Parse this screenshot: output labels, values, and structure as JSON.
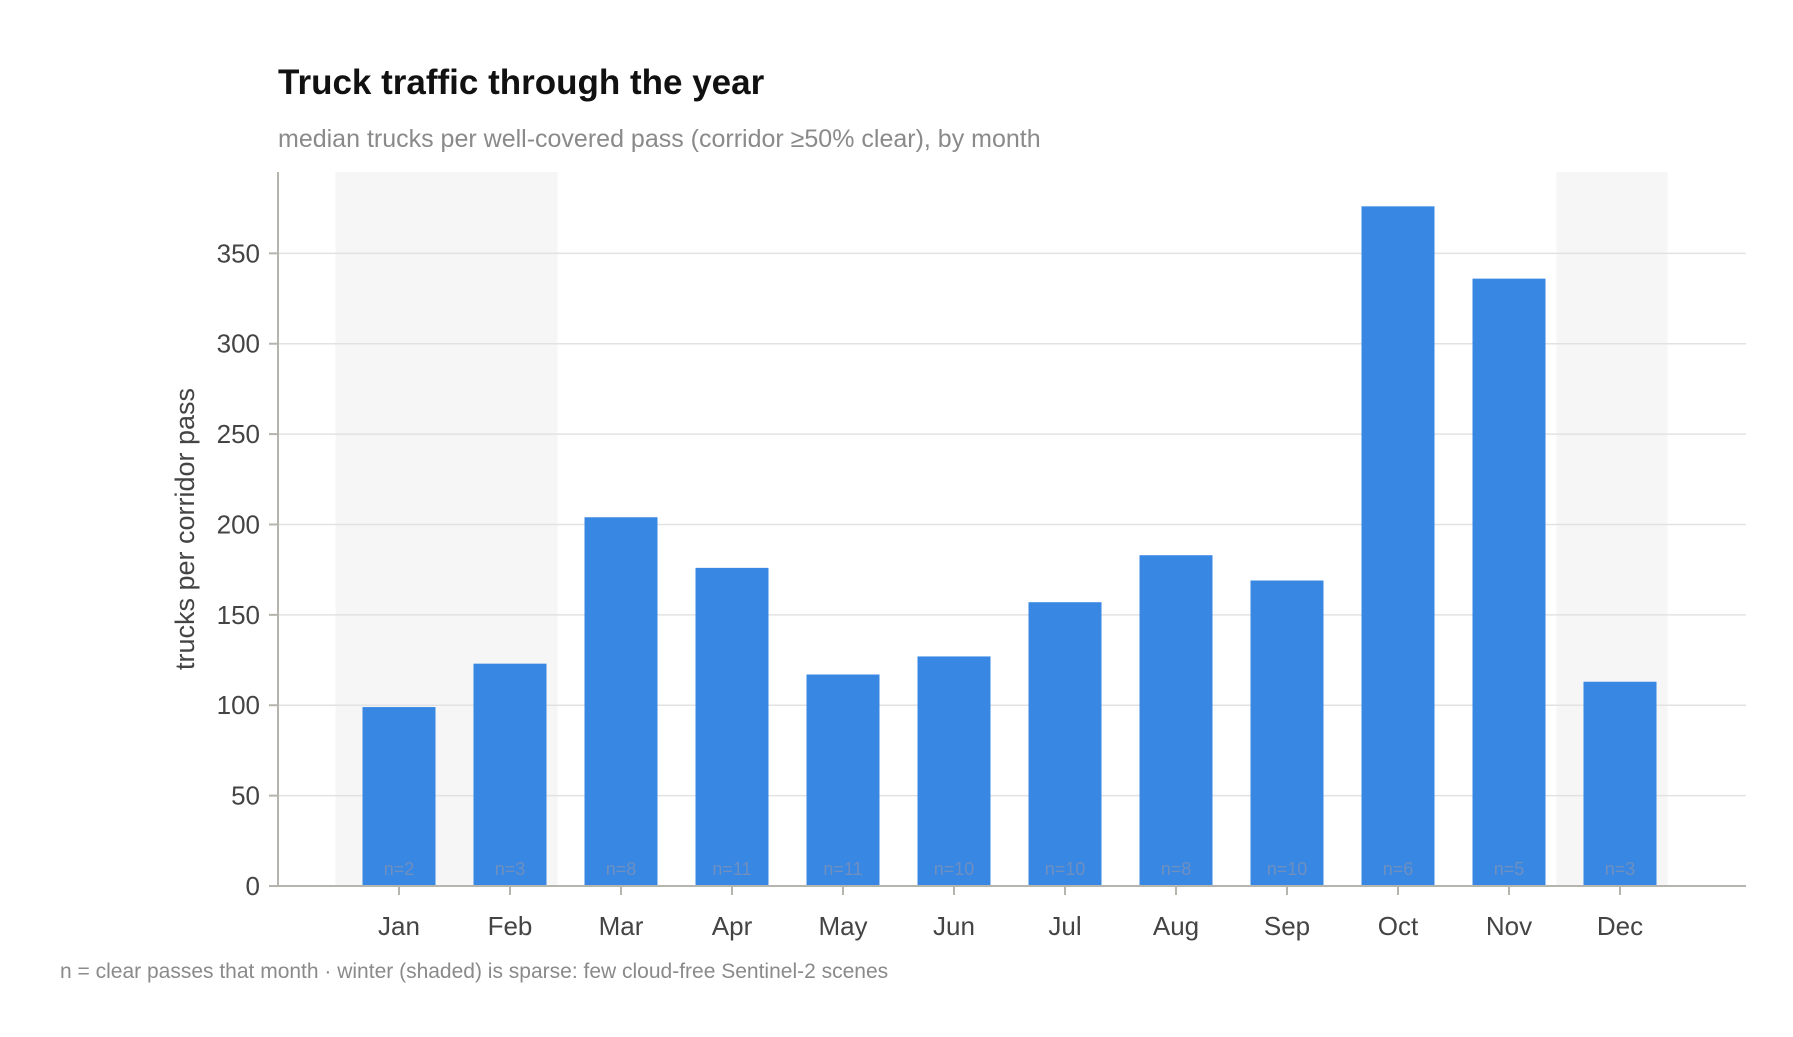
{
  "chart_data": {
    "type": "bar",
    "title": "Truck traffic through the year",
    "subtitle": "median trucks per well-covered pass (corridor ≥50% clear), by month",
    "xlabel": "",
    "ylabel": "trucks per corridor pass",
    "ylim": [
      0,
      395
    ],
    "yticks": [
      0,
      50,
      100,
      150,
      200,
      250,
      300,
      350
    ],
    "categories": [
      "Jan",
      "Feb",
      "Mar",
      "Apr",
      "May",
      "Jun",
      "Jul",
      "Aug",
      "Sep",
      "Oct",
      "Nov",
      "Dec"
    ],
    "values": [
      99,
      123,
      204,
      176,
      117,
      127,
      157,
      183,
      169,
      376,
      336,
      113
    ],
    "n_labels": [
      "n=2",
      "n=3",
      "n=8",
      "n=11",
      "n=11",
      "n=10",
      "n=10",
      "n=8",
      "n=10",
      "n=6",
      "n=5",
      "n=3"
    ],
    "shaded_months": [
      "Jan",
      "Feb",
      "Dec"
    ],
    "grid": true,
    "bar_color": "#3887e3",
    "shade_color": "#f6f6f6",
    "footnote": "n = clear passes that month · winter (shaded) is sparse: few cloud-free Sentinel-2 scenes"
  }
}
